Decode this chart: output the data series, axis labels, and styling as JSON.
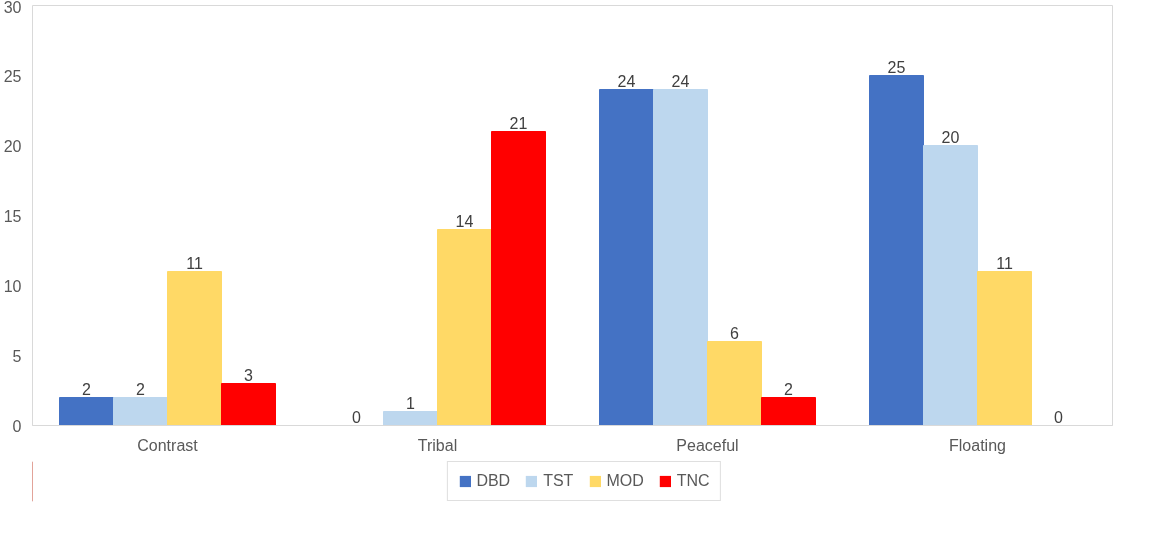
{
  "chart_data": {
    "type": "bar",
    "categories": [
      "Contrast",
      "Tribal",
      "Peaceful",
      "Floating"
    ],
    "series": [
      {
        "name": "DBD",
        "color": "#4472c4",
        "values": [
          2,
          0,
          24,
          25
        ]
      },
      {
        "name": "TST",
        "color": "#bdd7ee",
        "values": [
          2,
          1,
          24,
          20
        ]
      },
      {
        "name": "MOD",
        "color": "#ffd966",
        "values": [
          11,
          14,
          6,
          11
        ]
      },
      {
        "name": "TNC",
        "color": "#ff0000",
        "values": [
          3,
          21,
          2,
          0
        ]
      }
    ],
    "ylim": [
      0,
      30
    ],
    "yticks": [
      0,
      5,
      10,
      15,
      20,
      25,
      30
    ],
    "data_labels": true,
    "legend": "bottom",
    "grid": false
  }
}
